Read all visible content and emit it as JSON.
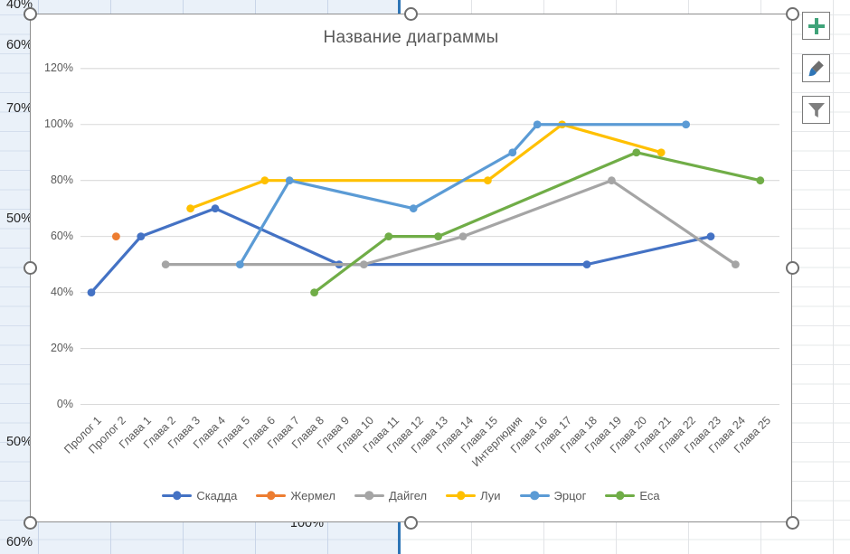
{
  "spreadsheet": {
    "cells": [
      "40%",
      "60%",
      "70%",
      "50%",
      "50%",
      "60%",
      "100%"
    ]
  },
  "chart_buttons": {
    "elements_icon": "plus-icon",
    "styles_icon": "brush-icon",
    "filters_icon": "funnel-icon"
  },
  "chart_data": {
    "type": "line",
    "title": "Название диаграммы",
    "xlabel": "",
    "ylabel": "",
    "ylim": [
      0,
      120
    ],
    "grid": true,
    "legend_position": "bottom",
    "y_ticks": [
      "0%",
      "20%",
      "40%",
      "60%",
      "80%",
      "100%",
      "120%"
    ],
    "y_tick_values": [
      0,
      20,
      40,
      60,
      80,
      100,
      120
    ],
    "categories": [
      "Пролог 1",
      "Пролог 2",
      "Глава 1",
      "Глава 2",
      "Глава 3",
      "Глава 4",
      "Глава 5",
      "Глава 6",
      "Глава 7",
      "Глава 8",
      "Глава 9",
      "Глава 10",
      "Глава 11",
      "Глава 12",
      "Глава 13",
      "Глава 14",
      "Глава 15",
      "Интерлюдия",
      "Глава 16",
      "Глава 17",
      "Глава 18",
      "Глава 19",
      "Глава 20",
      "Глава 21",
      "Глава 22",
      "Глава 23",
      "Глава 24",
      "Глава 25"
    ],
    "series": [
      {
        "id": "skadda",
        "name": "Скадда",
        "color": "#4472C4",
        "points": [
          [
            "Пролог 1",
            40
          ],
          [
            "Глава 1",
            60
          ],
          [
            "Глава 4",
            70
          ],
          [
            "Глава 9",
            50
          ],
          [
            "Глава 18",
            50
          ],
          [
            "Глава 23",
            60
          ]
        ]
      },
      {
        "id": "zhermel",
        "name": "Жермел",
        "color": "#ED7D31",
        "points": [
          [
            "Пролог 2",
            60
          ]
        ]
      },
      {
        "id": "daygel",
        "name": "Дайгел",
        "color": "#A5A5A5",
        "points": [
          [
            "Глава 2",
            50
          ],
          [
            "Глава 10",
            50
          ],
          [
            "Глава 14",
            60
          ],
          [
            "Глава 19",
            80
          ],
          [
            "Глава 24",
            50
          ]
        ]
      },
      {
        "id": "lui",
        "name": "Луи",
        "color": "#FFC000",
        "points": [
          [
            "Глава 3",
            70
          ],
          [
            "Глава 6",
            80
          ],
          [
            "Глава 15",
            80
          ],
          [
            "Глава 17",
            100
          ],
          [
            "Глава 21",
            90
          ]
        ]
      },
      {
        "id": "ertsog",
        "name": "Эрцог",
        "color": "#5B9BD5",
        "points": [
          [
            "Глава 5",
            50
          ],
          [
            "Глава 7",
            80
          ],
          [
            "Глава 12",
            70
          ],
          [
            "Интерлюдия",
            90
          ],
          [
            "Глава 16",
            100
          ],
          [
            "Глава 22",
            100
          ]
        ]
      },
      {
        "id": "esa",
        "name": "Еса",
        "color": "#70AD47",
        "points": [
          [
            "Глава 8",
            40
          ],
          [
            "Глава 11",
            60
          ],
          [
            "Глава 13",
            60
          ],
          [
            "Глава 20",
            90
          ],
          [
            "Глава 25",
            80
          ]
        ]
      }
    ]
  }
}
